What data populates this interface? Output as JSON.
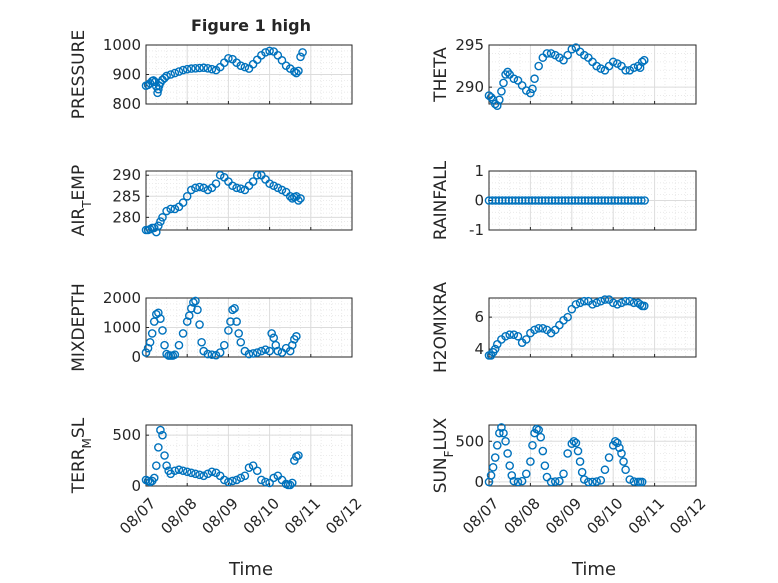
{
  "figure": {
    "title": "Figure 1 high",
    "xlabel": "Time",
    "xticks": [
      "08/07",
      "08/08",
      "08/09",
      "08/10",
      "08/11",
      "08/12"
    ]
  },
  "colors": {
    "marker": "#0072BD",
    "grid": "#e6e6e6",
    "axis": "#262626"
  },
  "chart_data": [
    {
      "id": "pressure",
      "type": "scatter",
      "title": "Figure 1 high",
      "ylabel": "PRESSURE",
      "ylabel_sub": null,
      "ylim": [
        800,
        1000
      ],
      "yticks": [
        "800",
        "900",
        "1000"
      ],
      "xlim": [
        0,
        5
      ],
      "xticks": [
        "08/07",
        "08/08",
        "08/09",
        "08/10",
        "08/11",
        "08/12"
      ],
      "xlabel": "Time",
      "grid": true,
      "x": [
        0.0,
        0.05,
        0.1,
        0.15,
        0.18,
        0.22,
        0.25,
        0.28,
        0.3,
        0.32,
        0.35,
        0.4,
        0.45,
        0.5,
        0.6,
        0.7,
        0.8,
        0.9,
        1.0,
        1.1,
        1.2,
        1.3,
        1.4,
        1.5,
        1.6,
        1.7,
        1.8,
        1.9,
        2.0,
        2.1,
        2.2,
        2.3,
        2.4,
        2.5,
        2.6,
        2.7,
        2.8,
        2.9,
        3.0,
        3.1,
        3.2,
        3.3,
        3.4,
        3.5,
        3.6,
        3.65,
        3.7,
        3.75,
        3.8
      ],
      "y": [
        862,
        865,
        870,
        878,
        880,
        875,
        860,
        838,
        850,
        862,
        872,
        882,
        888,
        895,
        900,
        905,
        910,
        915,
        918,
        920,
        921,
        922,
        923,
        921,
        918,
        915,
        925,
        940,
        955,
        952,
        940,
        930,
        925,
        920,
        935,
        950,
        965,
        975,
        980,
        978,
        965,
        948,
        930,
        920,
        910,
        905,
        912,
        960,
        975
      ]
    },
    {
      "id": "theta",
      "type": "scatter",
      "ylabel": "THETA",
      "ylabel_sub": null,
      "ylim": [
        288,
        295
      ],
      "yticks": [
        "290",
        "295"
      ],
      "xlim": [
        0,
        5
      ],
      "xticks": [
        "08/07",
        "08/08",
        "08/09",
        "08/10",
        "08/11",
        "08/12"
      ],
      "xlabel": "Time",
      "grid": true,
      "x": [
        0.0,
        0.05,
        0.1,
        0.15,
        0.2,
        0.25,
        0.3,
        0.35,
        0.4,
        0.45,
        0.5,
        0.6,
        0.7,
        0.8,
        0.9,
        1.0,
        1.05,
        1.1,
        1.2,
        1.3,
        1.4,
        1.5,
        1.6,
        1.7,
        1.8,
        1.9,
        2.0,
        2.1,
        2.2,
        2.3,
        2.4,
        2.5,
        2.6,
        2.7,
        2.8,
        2.9,
        3.0,
        3.1,
        3.2,
        3.3,
        3.4,
        3.5,
        3.6,
        3.65,
        3.7,
        3.75
      ],
      "y": [
        289.0,
        288.8,
        288.5,
        288.0,
        287.8,
        288.5,
        289.5,
        290.5,
        291.5,
        291.8,
        291.5,
        291.0,
        290.8,
        290.2,
        289.6,
        289.3,
        289.8,
        291.0,
        292.5,
        293.5,
        294.0,
        294.0,
        293.8,
        293.5,
        293.2,
        293.8,
        294.5,
        294.7,
        294.2,
        293.8,
        293.5,
        293.0,
        292.5,
        292.2,
        292.0,
        292.5,
        293.0,
        292.8,
        292.5,
        292.0,
        292.0,
        292.3,
        292.5,
        292.3,
        293.0,
        293.2
      ]
    },
    {
      "id": "air_temp",
      "type": "scatter",
      "ylabel": "AIR",
      "ylabel_sub": "T",
      "ylabel_rest": "EMP",
      "ylim": [
        277,
        291
      ],
      "yticks": [
        "280",
        "285",
        "290"
      ],
      "xlim": [
        0,
        5
      ],
      "xticks": [
        "08/07",
        "08/08",
        "08/09",
        "08/10",
        "08/11",
        "08/12"
      ],
      "xlabel": "Time",
      "grid": true,
      "x": [
        0.0,
        0.05,
        0.1,
        0.15,
        0.2,
        0.25,
        0.3,
        0.35,
        0.4,
        0.5,
        0.6,
        0.7,
        0.8,
        0.9,
        1.0,
        1.1,
        1.2,
        1.3,
        1.4,
        1.5,
        1.6,
        1.7,
        1.8,
        1.9,
        2.0,
        2.1,
        2.2,
        2.3,
        2.4,
        2.5,
        2.6,
        2.7,
        2.8,
        2.9,
        3.0,
        3.1,
        3.2,
        3.3,
        3.4,
        3.5,
        3.55,
        3.6,
        3.65,
        3.7,
        3.75
      ],
      "y": [
        277.0,
        277.0,
        277.2,
        277.5,
        277.5,
        276.5,
        278.0,
        279.0,
        280.0,
        281.5,
        282.0,
        282.0,
        282.5,
        283.5,
        285.0,
        286.5,
        287.0,
        287.2,
        287.0,
        286.5,
        287.0,
        288.0,
        290.0,
        289.5,
        288.5,
        287.5,
        287.0,
        286.8,
        286.5,
        287.5,
        288.5,
        290.0,
        290.0,
        289.0,
        288.0,
        287.5,
        287.0,
        286.5,
        286.0,
        285.0,
        284.5,
        284.8,
        285.0,
        284.0,
        284.5
      ]
    },
    {
      "id": "rainfall",
      "type": "scatter",
      "ylabel": "RAINFALL",
      "ylabel_sub": null,
      "ylim": [
        -1,
        1
      ],
      "yticks": [
        "-1",
        "0",
        "1"
      ],
      "xlim": [
        0,
        5
      ],
      "xticks": [
        "08/07",
        "08/08",
        "08/09",
        "08/10",
        "08/11",
        "08/12"
      ],
      "xlabel": "Time",
      "grid": true,
      "x": [
        0.0,
        0.08,
        0.16,
        0.24,
        0.32,
        0.4,
        0.48,
        0.56,
        0.64,
        0.72,
        0.8,
        0.88,
        0.96,
        1.04,
        1.12,
        1.2,
        1.28,
        1.36,
        1.44,
        1.52,
        1.6,
        1.68,
        1.76,
        1.84,
        1.92,
        2.0,
        2.08,
        2.16,
        2.24,
        2.32,
        2.4,
        2.48,
        2.56,
        2.64,
        2.72,
        2.8,
        2.88,
        2.96,
        3.04,
        3.12,
        3.2,
        3.28,
        3.36,
        3.44,
        3.52,
        3.6,
        3.68,
        3.76
      ],
      "y": [
        0,
        0,
        0,
        0,
        0,
        0,
        0,
        0,
        0,
        0,
        0,
        0,
        0,
        0,
        0,
        0,
        0,
        0,
        0,
        0,
        0,
        0,
        0,
        0,
        0,
        0,
        0,
        0,
        0,
        0,
        0,
        0,
        0,
        0,
        0,
        0,
        0,
        0,
        0,
        0,
        0,
        0,
        0,
        0,
        0,
        0,
        0,
        0
      ]
    },
    {
      "id": "mixdepth",
      "type": "scatter",
      "ylabel": "MIXDEPTH",
      "ylabel_sub": null,
      "ylim": [
        0,
        2000
      ],
      "yticks": [
        "0",
        "1000",
        "2000"
      ],
      "xlim": [
        0,
        5
      ],
      "xticks": [
        "08/07",
        "08/08",
        "08/09",
        "08/10",
        "08/11",
        "08/12"
      ],
      "xlabel": "Time",
      "grid": true,
      "x": [
        0.0,
        0.05,
        0.1,
        0.15,
        0.2,
        0.25,
        0.3,
        0.35,
        0.4,
        0.45,
        0.5,
        0.55,
        0.6,
        0.65,
        0.7,
        0.8,
        0.9,
        1.0,
        1.05,
        1.1,
        1.15,
        1.2,
        1.25,
        1.3,
        1.35,
        1.4,
        1.5,
        1.6,
        1.7,
        1.8,
        1.9,
        2.0,
        2.05,
        2.1,
        2.15,
        2.2,
        2.25,
        2.3,
        2.4,
        2.5,
        2.6,
        2.7,
        2.8,
        2.9,
        3.0,
        3.05,
        3.1,
        3.15,
        3.2,
        3.3,
        3.4,
        3.5,
        3.55,
        3.6,
        3.65
      ],
      "y": [
        150,
        300,
        500,
        800,
        1200,
        1450,
        1500,
        1300,
        900,
        400,
        100,
        50,
        50,
        50,
        80,
        400,
        800,
        1200,
        1400,
        1650,
        1850,
        1900,
        1600,
        1100,
        500,
        200,
        100,
        80,
        60,
        150,
        400,
        900,
        1200,
        1600,
        1650,
        1200,
        800,
        500,
        200,
        100,
        120,
        150,
        200,
        250,
        200,
        800,
        650,
        400,
        200,
        150,
        300,
        200,
        400,
        600,
        700
      ]
    },
    {
      "id": "h2omixra",
      "type": "scatter",
      "ylabel": "H2OMIXRA",
      "ylabel_sub": null,
      "ylim": [
        3.5,
        7.2
      ],
      "yticks": [
        "4",
        "6"
      ],
      "xlim": [
        0,
        5
      ],
      "xticks": [
        "08/07",
        "08/08",
        "08/09",
        "08/10",
        "08/11",
        "08/12"
      ],
      "xlabel": "Time",
      "grid": true,
      "x": [
        0.0,
        0.05,
        0.1,
        0.15,
        0.2,
        0.3,
        0.4,
        0.5,
        0.6,
        0.7,
        0.8,
        0.9,
        1.0,
        1.1,
        1.2,
        1.3,
        1.4,
        1.5,
        1.6,
        1.7,
        1.8,
        1.9,
        2.0,
        2.1,
        2.2,
        2.3,
        2.4,
        2.5,
        2.6,
        2.7,
        2.8,
        2.9,
        3.0,
        3.1,
        3.2,
        3.3,
        3.4,
        3.5,
        3.6,
        3.65,
        3.7,
        3.75
      ],
      "y": [
        3.6,
        3.6,
        3.8,
        4.0,
        4.3,
        4.6,
        4.8,
        4.9,
        4.9,
        4.8,
        4.4,
        4.6,
        5.0,
        5.2,
        5.3,
        5.3,
        5.2,
        5.0,
        5.2,
        5.5,
        5.8,
        6.0,
        6.5,
        6.8,
        6.9,
        7.0,
        7.0,
        6.8,
        6.9,
        7.0,
        7.1,
        7.1,
        6.9,
        6.8,
        6.9,
        7.0,
        7.0,
        6.9,
        6.9,
        6.8,
        6.7,
        6.7
      ]
    },
    {
      "id": "terr_msl",
      "type": "scatter",
      "ylabel": "TERR",
      "ylabel_sub": "M",
      "ylabel_rest": "SL",
      "ylim": [
        0,
        600
      ],
      "yticks": [
        "0",
        "500"
      ],
      "xlim": [
        0,
        5
      ],
      "xticks": [
        "08/07",
        "08/08",
        "08/09",
        "08/10",
        "08/11",
        "08/12"
      ],
      "xlabel": "Time",
      "grid": true,
      "x": [
        0.0,
        0.05,
        0.1,
        0.15,
        0.2,
        0.25,
        0.3,
        0.35,
        0.4,
        0.45,
        0.5,
        0.55,
        0.6,
        0.7,
        0.8,
        0.9,
        1.0,
        1.1,
        1.2,
        1.3,
        1.4,
        1.5,
        1.6,
        1.7,
        1.8,
        1.9,
        2.0,
        2.1,
        2.2,
        2.3,
        2.4,
        2.5,
        2.6,
        2.7,
        2.8,
        2.9,
        3.0,
        3.1,
        3.2,
        3.3,
        3.4,
        3.45,
        3.5,
        3.55,
        3.6,
        3.65,
        3.7
      ],
      "y": [
        60,
        50,
        40,
        50,
        80,
        200,
        380,
        550,
        500,
        300,
        200,
        150,
        120,
        150,
        160,
        150,
        140,
        130,
        120,
        110,
        100,
        120,
        140,
        130,
        100,
        60,
        40,
        50,
        60,
        80,
        100,
        180,
        200,
        150,
        60,
        40,
        30,
        80,
        100,
        60,
        20,
        10,
        10,
        30,
        250,
        290,
        300
      ]
    },
    {
      "id": "sun_flux",
      "type": "scatter",
      "ylabel": "SUN",
      "ylabel_sub": "F",
      "ylabel_rest": "LUX",
      "ylim": [
        -50,
        700
      ],
      "yticks": [
        "0",
        "500"
      ],
      "xlim": [
        0,
        5
      ],
      "xticks": [
        "08/07",
        "08/08",
        "08/09",
        "08/10",
        "08/11",
        "08/12"
      ],
      "xlabel": "Time",
      "grid": true,
      "x": [
        0.0,
        0.05,
        0.1,
        0.15,
        0.2,
        0.25,
        0.3,
        0.35,
        0.4,
        0.45,
        0.5,
        0.55,
        0.6,
        0.7,
        0.8,
        0.9,
        1.0,
        1.05,
        1.1,
        1.15,
        1.2,
        1.25,
        1.3,
        1.35,
        1.4,
        1.5,
        1.6,
        1.7,
        1.8,
        1.9,
        2.0,
        2.05,
        2.1,
        2.15,
        2.2,
        2.25,
        2.3,
        2.4,
        2.5,
        2.6,
        2.7,
        2.8,
        2.9,
        3.0,
        3.05,
        3.1,
        3.15,
        3.2,
        3.25,
        3.3,
        3.4,
        3.5,
        3.6,
        3.65,
        3.7
      ],
      "y": [
        0,
        80,
        180,
        300,
        450,
        600,
        670,
        600,
        500,
        350,
        200,
        80,
        10,
        0,
        10,
        100,
        250,
        450,
        600,
        650,
        640,
        550,
        380,
        200,
        60,
        0,
        5,
        10,
        100,
        350,
        470,
        500,
        480,
        380,
        250,
        120,
        30,
        0,
        0,
        5,
        20,
        150,
        300,
        450,
        500,
        480,
        420,
        350,
        250,
        150,
        30,
        5,
        0,
        0,
        0
      ]
    }
  ]
}
